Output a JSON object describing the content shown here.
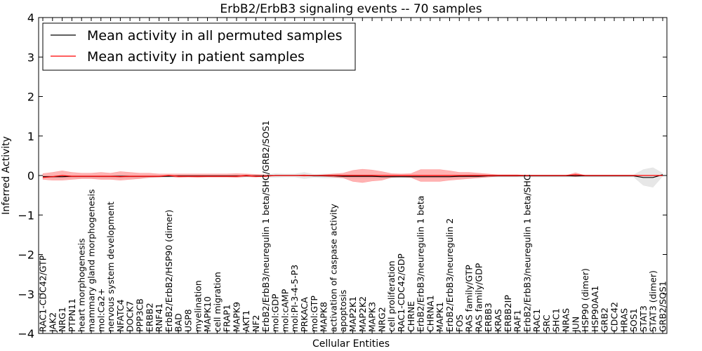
{
  "chart_data": {
    "type": "line",
    "title": "ErbB2/ErbB3 signaling events -- 70 samples",
    "xlabel": "Cellular Entities",
    "ylabel": "Inferred Activity",
    "ylim": [
      -4,
      4
    ],
    "yticks": [
      -4,
      -3,
      -2,
      -1,
      0,
      1,
      2,
      3,
      4
    ],
    "ytick_labels": [
      "−4",
      "−3",
      "−2",
      "−1",
      "0",
      "1",
      "2",
      "3",
      "4"
    ],
    "legend_position": "top-left",
    "categories": [
      "RAC1-CDC42/GTP",
      "JAK2",
      "NRG1",
      "PTPN11",
      "heart morphogenesis",
      "mammary gland morphogenesis",
      "mol:Ca2+",
      "nervous system development",
      "NFATC4",
      "DOCK7",
      "PPP3CB",
      "ERBB2",
      "RNF41",
      "ErbB2/ErbB2/HSP90 (dimer)",
      "BAD",
      "USP8",
      "myelination",
      "MAPK10",
      "cell migration",
      "FRAP1",
      "MAPK9",
      "AKT1",
      "NF2",
      "ErbB2/ErbB3/neuregulin 1 beta/SHC/GRB2/SOS1",
      "mol:GDP",
      "mol:cAMP",
      "mol:PI-3-4-5-P3",
      "PRKACA",
      "mol:GTP",
      "MAPK8",
      "activation of caspase activity",
      "apoptosis",
      "MAP2K1",
      "MAP2K2",
      "MAPK3",
      "NRG2",
      "cell proliferation",
      "RAC1-CDC42/GDP",
      "CHRNE",
      "ErbB2/ErbB3/neuregulin 1 beta",
      "CHRNA1",
      "MAPK1",
      "ErbB2/ErbB3/neuregulin 2",
      "FOS",
      "RAS family/GTP",
      "RAS family/GDP",
      "ERBB3",
      "KRAS",
      "ERBB2IP",
      "RAF1",
      "ErbB2/ErbB3/neuregulin 1 beta/SHC",
      "RAC1",
      "SRC",
      "SHC1",
      "NRAS",
      "JUN",
      "HSP90 (dimer)",
      "HSP90AA1",
      "GRB2",
      "CDC42",
      "HRAS",
      "SOS1",
      "STAT3",
      "STAT3 (dimer)",
      "GRB2/SOS1"
    ],
    "series": [
      {
        "name": "Mean activity in all permuted samples",
        "color": "#000000",
        "values": [
          -0.03,
          -0.03,
          -0.03,
          -0.02,
          -0.02,
          -0.02,
          -0.02,
          -0.02,
          -0.02,
          -0.02,
          -0.02,
          -0.02,
          -0.02,
          -0.02,
          -0.01,
          -0.01,
          -0.01,
          -0.01,
          -0.01,
          -0.01,
          -0.01,
          -0.01,
          -0.01,
          -0.01,
          0.0,
          0.0,
          0.0,
          0.0,
          -0.01,
          -0.01,
          -0.01,
          -0.02,
          -0.02,
          -0.02,
          -0.02,
          -0.03,
          -0.03,
          -0.03,
          -0.03,
          -0.03,
          -0.03,
          -0.03,
          -0.03,
          -0.02,
          -0.02,
          -0.02,
          -0.01,
          -0.01,
          -0.01,
          -0.01,
          -0.01,
          -0.01,
          -0.01,
          -0.01,
          -0.01,
          -0.01,
          -0.01,
          -0.01,
          -0.01,
          -0.01,
          -0.01,
          -0.01,
          -0.05,
          -0.05,
          0.02
        ],
        "band_low": [
          -0.05,
          -0.06,
          -0.06,
          -0.06,
          -0.06,
          -0.06,
          -0.06,
          -0.06,
          -0.06,
          -0.06,
          -0.06,
          -0.06,
          -0.05,
          -0.05,
          -0.04,
          -0.04,
          -0.04,
          -0.04,
          -0.04,
          -0.04,
          -0.04,
          -0.04,
          -0.04,
          -0.05,
          -0.05,
          -0.04,
          -0.04,
          -0.08,
          -0.05,
          -0.06,
          -0.06,
          -0.06,
          -0.06,
          -0.06,
          -0.06,
          -0.06,
          -0.06,
          -0.06,
          -0.06,
          -0.06,
          -0.06,
          -0.06,
          -0.06,
          -0.06,
          -0.05,
          -0.05,
          -0.04,
          -0.04,
          -0.04,
          -0.04,
          -0.04,
          -0.04,
          -0.04,
          -0.04,
          -0.04,
          -0.04,
          -0.04,
          -0.04,
          -0.04,
          -0.04,
          -0.04,
          -0.04,
          -0.25,
          -0.3,
          -0.02
        ],
        "band_high": [
          0.0,
          0.0,
          0.0,
          0.0,
          0.0,
          0.0,
          0.0,
          0.0,
          0.0,
          0.0,
          0.0,
          0.0,
          0.0,
          0.0,
          0.02,
          0.02,
          0.02,
          0.02,
          0.02,
          0.02,
          0.02,
          0.02,
          0.02,
          0.02,
          0.05,
          0.04,
          0.04,
          0.08,
          0.03,
          0.04,
          0.04,
          0.02,
          0.02,
          0.02,
          0.02,
          0.0,
          0.0,
          0.0,
          0.0,
          0.0,
          0.0,
          0.0,
          0.0,
          0.0,
          0.02,
          0.02,
          0.02,
          0.02,
          0.02,
          0.02,
          0.02,
          0.02,
          0.02,
          0.02,
          0.02,
          0.02,
          0.02,
          0.02,
          0.02,
          0.02,
          0.02,
          0.02,
          0.15,
          0.2,
          0.06
        ]
      },
      {
        "name": "Mean activity in patient samples",
        "color": "#ff0000",
        "values": [
          -0.05,
          -0.03,
          0.0,
          -0.02,
          -0.02,
          -0.02,
          -0.02,
          -0.02,
          -0.03,
          -0.02,
          -0.02,
          -0.02,
          -0.02,
          0.0,
          -0.02,
          -0.02,
          -0.02,
          -0.02,
          -0.02,
          -0.02,
          -0.02,
          0.0,
          -0.02,
          -0.02,
          0.0,
          0.0,
          0.0,
          0.0,
          0.0,
          0.0,
          0.0,
          0.0,
          0.0,
          0.0,
          0.0,
          0.0,
          0.0,
          0.0,
          0.0,
          0.0,
          0.0,
          0.0,
          0.0,
          0.0,
          0.0,
          0.0,
          0.0,
          0.0,
          0.0,
          0.0,
          0.0,
          0.0,
          0.0,
          0.0,
          0.0,
          0.02,
          0.0,
          0.0,
          0.0,
          0.0,
          0.0,
          0.0,
          0.0,
          0.0,
          0.0
        ],
        "band_low": [
          -0.1,
          -0.12,
          -0.12,
          -0.1,
          -0.08,
          -0.08,
          -0.1,
          -0.1,
          -0.12,
          -0.1,
          -0.08,
          -0.05,
          -0.04,
          -0.02,
          -0.05,
          -0.04,
          -0.05,
          -0.04,
          -0.04,
          -0.04,
          -0.05,
          -0.03,
          -0.04,
          -0.02,
          0.0,
          0.0,
          0.0,
          -0.02,
          0.0,
          -0.02,
          -0.04,
          -0.06,
          -0.15,
          -0.18,
          -0.14,
          -0.12,
          -0.05,
          -0.04,
          -0.05,
          -0.15,
          -0.15,
          -0.15,
          -0.12,
          -0.1,
          -0.08,
          -0.06,
          -0.04,
          -0.02,
          -0.02,
          -0.02,
          0.0,
          0.0,
          0.0,
          0.0,
          0.0,
          -0.03,
          0.0,
          0.0,
          0.0,
          0.0,
          0.0,
          0.0,
          0.0,
          0.0,
          0.0
        ],
        "band_high": [
          0.05,
          0.08,
          0.12,
          0.08,
          0.06,
          0.06,
          0.08,
          0.06,
          0.1,
          0.08,
          0.06,
          0.06,
          0.04,
          0.04,
          0.04,
          0.04,
          0.04,
          0.04,
          0.04,
          0.04,
          0.05,
          0.04,
          0.03,
          0.02,
          0.0,
          0.0,
          0.0,
          0.02,
          0.0,
          0.02,
          0.04,
          0.06,
          0.13,
          0.16,
          0.14,
          0.1,
          0.05,
          0.04,
          0.05,
          0.15,
          0.15,
          0.15,
          0.12,
          0.08,
          0.08,
          0.06,
          0.04,
          0.02,
          0.02,
          0.02,
          0.0,
          0.0,
          0.0,
          0.0,
          0.0,
          0.07,
          0.0,
          0.0,
          0.0,
          0.0,
          0.0,
          0.0,
          0.0,
          0.0,
          0.0
        ]
      }
    ]
  }
}
